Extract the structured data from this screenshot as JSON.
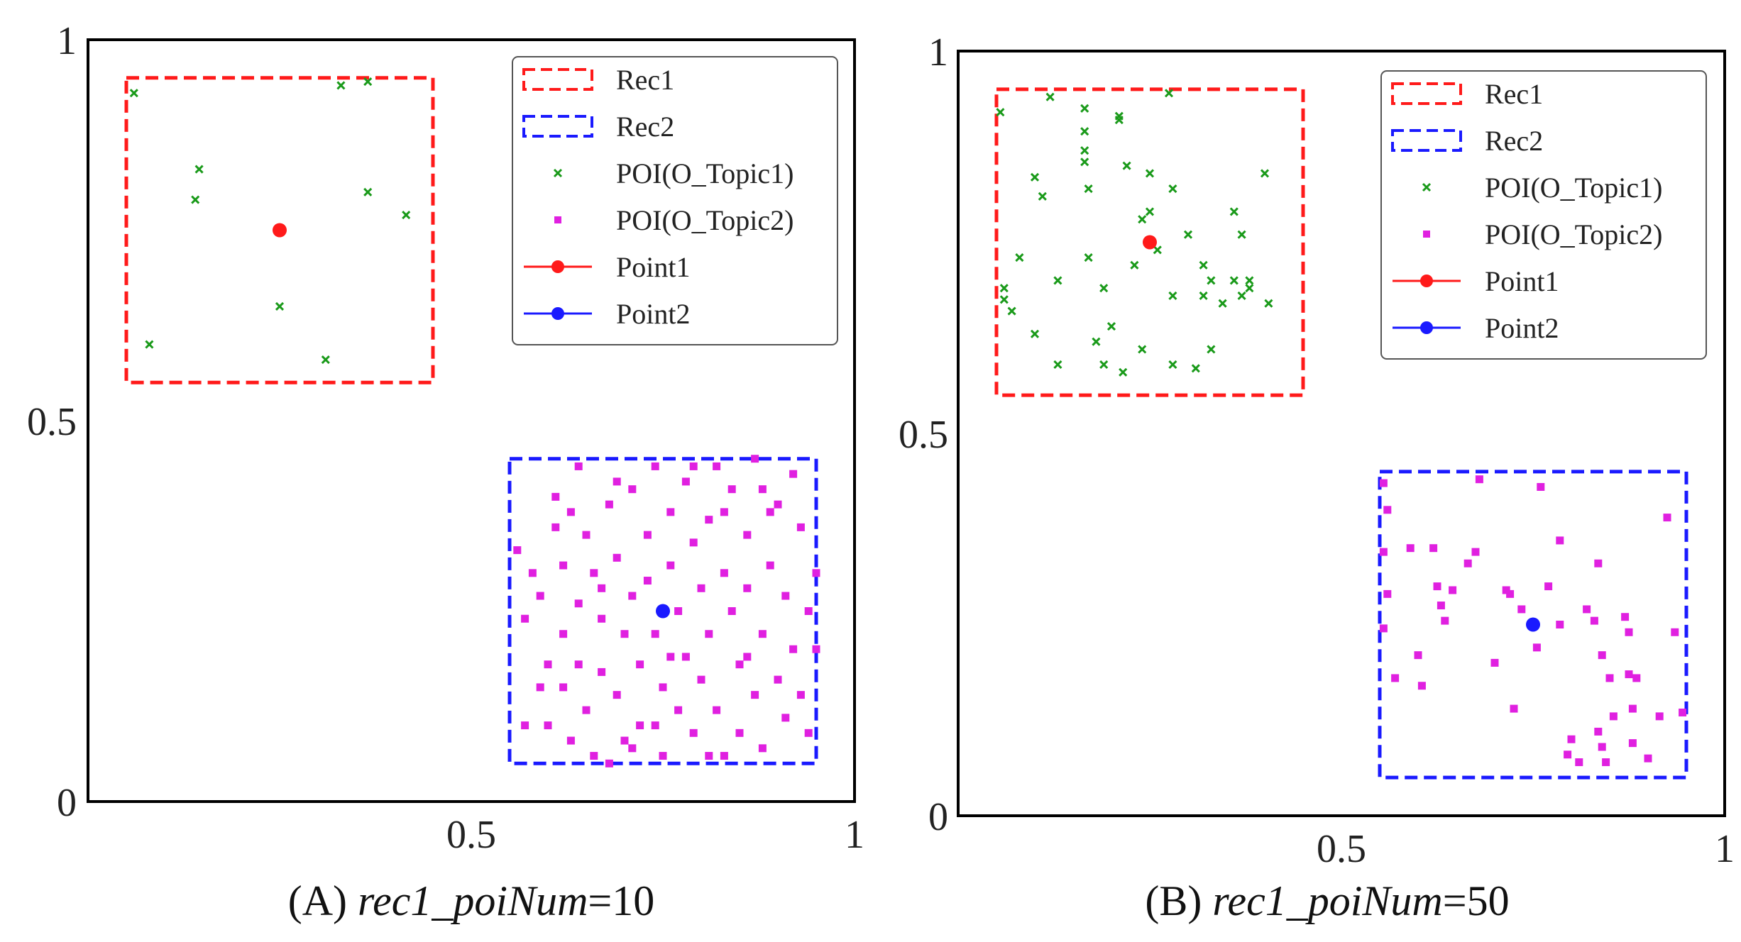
{
  "colors": {
    "rec1": "#ff1a1a",
    "rec2": "#1a1aff",
    "topic1": "#1a9a1a",
    "topic2": "#e020e0",
    "point1": "#ff1a1a",
    "point2": "#1a1aff"
  },
  "legend_labels": [
    "Rec1",
    "Rec2",
    "POI(O_Topic1)",
    "POI(O_Topic2)",
    "Point1",
    "Point2"
  ],
  "chart_data": [
    {
      "type": "scatter",
      "caption_prefix": "(A) ",
      "caption_italic": "rec1_poiNum",
      "caption_suffix": "=10",
      "xlim": [
        0,
        1
      ],
      "ylim": [
        0,
        1
      ],
      "x_ticks": [
        "0.5",
        "1"
      ],
      "y_ticks": [
        "0",
        "0.5",
        "1"
      ],
      "legend_position": "top-right",
      "rectangles": [
        {
          "name": "Rec1",
          "x0": 0.05,
          "y0": 0.55,
          "x1": 0.45,
          "y1": 0.95
        },
        {
          "name": "Rec2",
          "x0": 0.55,
          "y0": 0.05,
          "x1": 0.95,
          "y1": 0.45
        }
      ],
      "topic1_points": [
        [
          0.06,
          0.93
        ],
        [
          0.33,
          0.94
        ],
        [
          0.365,
          0.945
        ],
        [
          0.145,
          0.83
        ],
        [
          0.14,
          0.79
        ],
        [
          0.365,
          0.8
        ],
        [
          0.415,
          0.77
        ],
        [
          0.25,
          0.65
        ],
        [
          0.08,
          0.6
        ],
        [
          0.31,
          0.58
        ]
      ],
      "topic2_points": [
        [
          0.56,
          0.33
        ],
        [
          0.58,
          0.3
        ],
        [
          0.57,
          0.1
        ],
        [
          0.59,
          0.15
        ],
        [
          0.59,
          0.27
        ],
        [
          0.6,
          0.18
        ],
        [
          0.61,
          0.36
        ],
        [
          0.61,
          0.4
        ],
        [
          0.62,
          0.22
        ],
        [
          0.62,
          0.15
        ],
        [
          0.63,
          0.38
        ],
        [
          0.63,
          0.08
        ],
        [
          0.64,
          0.26
        ],
        [
          0.64,
          0.18
        ],
        [
          0.65,
          0.35
        ],
        [
          0.65,
          0.12
        ],
        [
          0.66,
          0.3
        ],
        [
          0.66,
          0.06
        ],
        [
          0.67,
          0.24
        ],
        [
          0.67,
          0.17
        ],
        [
          0.68,
          0.39
        ],
        [
          0.68,
          0.05
        ],
        [
          0.69,
          0.32
        ],
        [
          0.69,
          0.14
        ],
        [
          0.7,
          0.22
        ],
        [
          0.7,
          0.08
        ],
        [
          0.71,
          0.41
        ],
        [
          0.71,
          0.27
        ],
        [
          0.72,
          0.18
        ],
        [
          0.72,
          0.1
        ],
        [
          0.73,
          0.35
        ],
        [
          0.73,
          0.29
        ],
        [
          0.74,
          0.44
        ],
        [
          0.74,
          0.22
        ],
        [
          0.75,
          0.15
        ],
        [
          0.75,
          0.06
        ],
        [
          0.76,
          0.38
        ],
        [
          0.76,
          0.31
        ],
        [
          0.77,
          0.25
        ],
        [
          0.77,
          0.12
        ],
        [
          0.78,
          0.42
        ],
        [
          0.78,
          0.19
        ],
        [
          0.79,
          0.34
        ],
        [
          0.79,
          0.09
        ],
        [
          0.8,
          0.28
        ],
        [
          0.8,
          0.16
        ],
        [
          0.81,
          0.37
        ],
        [
          0.81,
          0.22
        ],
        [
          0.82,
          0.44
        ],
        [
          0.82,
          0.12
        ],
        [
          0.83,
          0.3
        ],
        [
          0.83,
          0.06
        ],
        [
          0.84,
          0.41
        ],
        [
          0.84,
          0.25
        ],
        [
          0.85,
          0.18
        ],
        [
          0.85,
          0.09
        ],
        [
          0.86,
          0.35
        ],
        [
          0.86,
          0.28
        ],
        [
          0.87,
          0.45
        ],
        [
          0.87,
          0.14
        ],
        [
          0.88,
          0.22
        ],
        [
          0.88,
          0.07
        ],
        [
          0.89,
          0.38
        ],
        [
          0.89,
          0.31
        ],
        [
          0.9,
          0.16
        ],
        [
          0.91,
          0.27
        ],
        [
          0.91,
          0.11
        ],
        [
          0.92,
          0.43
        ],
        [
          0.92,
          0.2
        ],
        [
          0.93,
          0.36
        ],
        [
          0.94,
          0.25
        ],
        [
          0.94,
          0.09
        ],
        [
          0.95,
          0.3
        ],
        [
          0.95,
          0.2
        ],
        [
          0.57,
          0.24
        ],
        [
          0.6,
          0.1
        ],
        [
          0.67,
          0.28
        ],
        [
          0.71,
          0.07
        ],
        [
          0.79,
          0.44
        ],
        [
          0.86,
          0.19
        ],
        [
          0.9,
          0.39
        ],
        [
          0.93,
          0.14
        ],
        [
          0.64,
          0.44
        ],
        [
          0.76,
          0.19
        ],
        [
          0.83,
          0.38
        ],
        [
          0.69,
          0.42
        ],
        [
          0.88,
          0.41
        ],
        [
          0.62,
          0.31
        ],
        [
          0.74,
          0.1
        ],
        [
          0.81,
          0.06
        ]
      ],
      "point1": [
        0.25,
        0.75
      ],
      "point2": [
        0.75,
        0.25
      ]
    },
    {
      "type": "scatter",
      "caption_prefix": "(B) ",
      "caption_italic": "rec1_poiNum",
      "caption_suffix": "=50",
      "xlim": [
        0,
        1
      ],
      "ylim": [
        0,
        1
      ],
      "x_ticks": [
        "0.5",
        "1"
      ],
      "y_ticks": [
        "0",
        "0.5",
        "1"
      ],
      "legend_position": "top-right",
      "rectangles": [
        {
          "name": "Rec1",
          "x0": 0.05,
          "y0": 0.55,
          "x1": 0.45,
          "y1": 0.95
        },
        {
          "name": "Rec2",
          "x0": 0.55,
          "y0": 0.05,
          "x1": 0.95,
          "y1": 0.45
        }
      ],
      "topic1_points": [
        [
          0.055,
          0.92
        ],
        [
          0.12,
          0.94
        ],
        [
          0.165,
          0.925
        ],
        [
          0.165,
          0.895
        ],
        [
          0.21,
          0.91
        ],
        [
          0.21,
          0.915
        ],
        [
          0.275,
          0.945
        ],
        [
          0.165,
          0.87
        ],
        [
          0.165,
          0.855
        ],
        [
          0.1,
          0.835
        ],
        [
          0.11,
          0.81
        ],
        [
          0.17,
          0.82
        ],
        [
          0.22,
          0.85
        ],
        [
          0.25,
          0.84
        ],
        [
          0.28,
          0.82
        ],
        [
          0.4,
          0.84
        ],
        [
          0.25,
          0.79
        ],
        [
          0.24,
          0.78
        ],
        [
          0.36,
          0.79
        ],
        [
          0.3,
          0.76
        ],
        [
          0.37,
          0.76
        ],
        [
          0.08,
          0.73
        ],
        [
          0.17,
          0.73
        ],
        [
          0.26,
          0.74
        ],
        [
          0.23,
          0.72
        ],
        [
          0.32,
          0.72
        ],
        [
          0.33,
          0.7
        ],
        [
          0.36,
          0.7
        ],
        [
          0.38,
          0.7
        ],
        [
          0.38,
          0.69
        ],
        [
          0.13,
          0.7
        ],
        [
          0.19,
          0.69
        ],
        [
          0.28,
          0.68
        ],
        [
          0.32,
          0.68
        ],
        [
          0.37,
          0.68
        ],
        [
          0.405,
          0.67
        ],
        [
          0.06,
          0.69
        ],
        [
          0.06,
          0.675
        ],
        [
          0.07,
          0.66
        ],
        [
          0.345,
          0.67
        ],
        [
          0.2,
          0.64
        ],
        [
          0.18,
          0.62
        ],
        [
          0.1,
          0.63
        ],
        [
          0.24,
          0.61
        ],
        [
          0.33,
          0.61
        ],
        [
          0.13,
          0.59
        ],
        [
          0.19,
          0.59
        ],
        [
          0.28,
          0.59
        ],
        [
          0.31,
          0.585
        ],
        [
          0.215,
          0.58
        ]
      ],
      "topic2_points": [
        [
          0.555,
          0.435
        ],
        [
          0.555,
          0.345
        ],
        [
          0.56,
          0.29
        ],
        [
          0.555,
          0.245
        ],
        [
          0.57,
          0.18
        ],
        [
          0.56,
          0.4
        ],
        [
          0.59,
          0.35
        ],
        [
          0.6,
          0.21
        ],
        [
          0.605,
          0.17
        ],
        [
          0.62,
          0.35
        ],
        [
          0.625,
          0.3
        ],
        [
          0.63,
          0.275
        ],
        [
          0.635,
          0.255
        ],
        [
          0.645,
          0.295
        ],
        [
          0.665,
          0.33
        ],
        [
          0.675,
          0.345
        ],
        [
          0.68,
          0.44
        ],
        [
          0.7,
          0.2
        ],
        [
          0.715,
          0.295
        ],
        [
          0.72,
          0.29
        ],
        [
          0.725,
          0.14
        ],
        [
          0.735,
          0.27
        ],
        [
          0.755,
          0.22
        ],
        [
          0.76,
          0.43
        ],
        [
          0.77,
          0.3
        ],
        [
          0.785,
          0.25
        ],
        [
          0.785,
          0.36
        ],
        [
          0.795,
          0.08
        ],
        [
          0.8,
          0.1
        ],
        [
          0.81,
          0.07
        ],
        [
          0.82,
          0.27
        ],
        [
          0.83,
          0.255
        ],
        [
          0.835,
          0.33
        ],
        [
          0.835,
          0.11
        ],
        [
          0.84,
          0.21
        ],
        [
          0.84,
          0.09
        ],
        [
          0.845,
          0.07
        ],
        [
          0.85,
          0.18
        ],
        [
          0.855,
          0.13
        ],
        [
          0.87,
          0.26
        ],
        [
          0.875,
          0.24
        ],
        [
          0.875,
          0.185
        ],
        [
          0.88,
          0.14
        ],
        [
          0.88,
          0.095
        ],
        [
          0.885,
          0.18
        ],
        [
          0.9,
          0.075
        ],
        [
          0.915,
          0.13
        ],
        [
          0.925,
          0.39
        ],
        [
          0.935,
          0.24
        ],
        [
          0.945,
          0.135
        ]
      ],
      "point1": [
        0.25,
        0.75
      ],
      "point2": [
        0.75,
        0.25
      ]
    }
  ],
  "captions": [
    {
      "prefix": "(A) ",
      "italic": "rec1_poiNum",
      "suffix": "=10"
    },
    {
      "prefix": "(B) ",
      "italic": "rec1_poiNum",
      "suffix": "=50"
    }
  ]
}
